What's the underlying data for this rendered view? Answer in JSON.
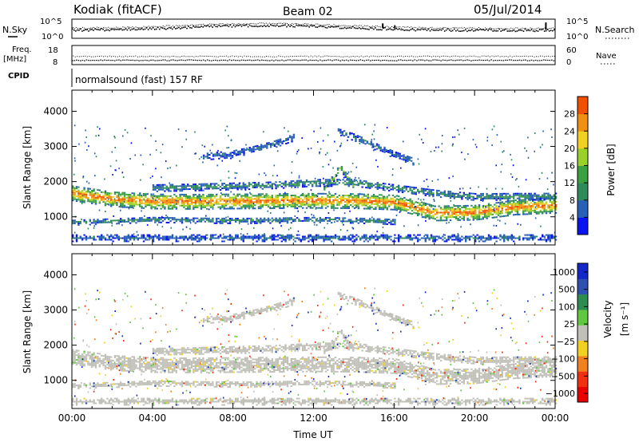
{
  "header": {
    "title": "Kodiak (fitACF)",
    "beam": "Beam 02",
    "date": "05/Jul/2014"
  },
  "noise_panel": {
    "left_label": "N.Sky",
    "right_label": "N.Search",
    "left_ticks": [
      "10^5",
      "10^0"
    ],
    "right_ticks": [
      "10^5",
      "10^0"
    ]
  },
  "freq_panel": {
    "left_label_line1": "Freq.",
    "left_label_line2": "[MHz]",
    "right_label": "Nave",
    "left_ticks": [
      "18",
      "8"
    ],
    "right_ticks": [
      "60",
      "0"
    ],
    "freq_value_mhz": 10.5,
    "nave_value": 27
  },
  "cpid": {
    "label": "CPID",
    "value": "normalsound (fast) 157 RF"
  },
  "chart_data": [
    {
      "type": "heatmap",
      "panel": "power",
      "xlabel": "",
      "ylabel": "Slant Range [km]",
      "x_range_hours": [
        0,
        24
      ],
      "ylim": [
        200,
        4600
      ],
      "yticks": [
        1000,
        2000,
        3000,
        4000
      ],
      "colorbar": {
        "label": "Power [dB]",
        "min": 0,
        "max": 32,
        "tick_values": [
          4,
          8,
          12,
          16,
          20,
          24,
          28
        ],
        "tick_labels": [
          "4",
          "8",
          "12",
          "16",
          "20",
          "24",
          "28"
        ],
        "colors": [
          "#0a14f0",
          "#2860b8",
          "#2f8a5a",
          "#3aa040",
          "#9ad02a",
          "#f0d020",
          "#f09010",
          "#f05000",
          "#e81000"
        ]
      },
      "features": [
        {
          "name": "main band",
          "x": [
            0,
            2,
            4,
            6,
            8,
            10,
            12,
            14,
            16,
            17,
            18,
            20,
            22,
            24
          ],
          "center_km": [
            1650,
            1480,
            1420,
            1410,
            1420,
            1430,
            1440,
            1430,
            1390,
            1250,
            1080,
            1100,
            1250,
            1300
          ],
          "width_km": 420,
          "peak_db": 26
        },
        {
          "name": "lower band",
          "x": [
            0,
            2,
            4,
            6,
            8,
            10,
            12,
            14,
            16
          ],
          "center_km": [
            820,
            860,
            900,
            880,
            870,
            880,
            900,
            880,
            840
          ],
          "width_km": 160,
          "peak_db": 9
        },
        {
          "name": "near range echoes",
          "x": [
            0,
            4,
            8,
            12,
            16,
            18,
            20,
            24
          ],
          "center_km": [
            380,
            380,
            380,
            380,
            380,
            380,
            380,
            380
          ],
          "width_km": 200,
          "peak_db": 6
        },
        {
          "name": "far range arc",
          "x": [
            6.5,
            8,
            9,
            10,
            11
          ],
          "center_km": [
            2700,
            2780,
            2900,
            3050,
            3250
          ],
          "width_km": 220,
          "peak_db": 7
        },
        {
          "name": "high range arc",
          "x": [
            13.2,
            14,
            15,
            16,
            17
          ],
          "center_km": [
            3400,
            3250,
            3000,
            2750,
            2550
          ],
          "width_km": 220,
          "peak_db": 7
        },
        {
          "name": "spike near 13:30",
          "x": [
            12.5,
            13,
            13.3,
            13.6,
            14
          ],
          "center_km": [
            1750,
            2100,
            2400,
            2150,
            1800
          ],
          "width_km": 180,
          "peak_db": 14
        },
        {
          "name": "upper flank",
          "x": [
            4,
            6,
            8,
            10,
            12,
            14,
            16,
            18,
            20,
            24
          ],
          "center_km": [
            1800,
            1820,
            1850,
            1880,
            1950,
            1950,
            1800,
            1650,
            1550,
            1560
          ],
          "width_km": 200,
          "peak_db": 10
        }
      ]
    },
    {
      "type": "heatmap",
      "panel": "velocity",
      "xlabel": "Time UT",
      "ylabel": "Slant Range [km]",
      "x_range_hours": [
        0,
        24
      ],
      "xtick_labels": [
        "00:00",
        "04:00",
        "08:00",
        "12:00",
        "16:00",
        "20:00",
        "00:00"
      ],
      "xticks_hours": [
        0,
        4,
        8,
        12,
        16,
        20,
        24
      ],
      "ylim": [
        200,
        4600
      ],
      "yticks": [
        1000,
        2000,
        3000,
        4000
      ],
      "colorbar": {
        "label_line1": "Velocity",
        "label_line2": "[m s⁻¹]",
        "tick_values": [
          1000,
          500,
          100,
          25,
          -25,
          -100,
          -500,
          -1000
        ],
        "tick_labels": [
          "1000",
          "500",
          "100",
          "25",
          "−25",
          "−100",
          "−500",
          "−1000"
        ],
        "colors": [
          "#1428c8",
          "#3050b0",
          "#2e8c50",
          "#60c840",
          "#c0c0b8",
          "#f0d020",
          "#f08020",
          "#f03010",
          "#e80000"
        ]
      },
      "dominant_value_ms": 0,
      "note": ""
    }
  ],
  "labels": {
    "slant_range": "Slant Range [km]",
    "power": "Power [dB]",
    "velocity": "Velocity",
    "velocity_unit": "[m s⁻¹]",
    "time_ut": "Time UT"
  }
}
